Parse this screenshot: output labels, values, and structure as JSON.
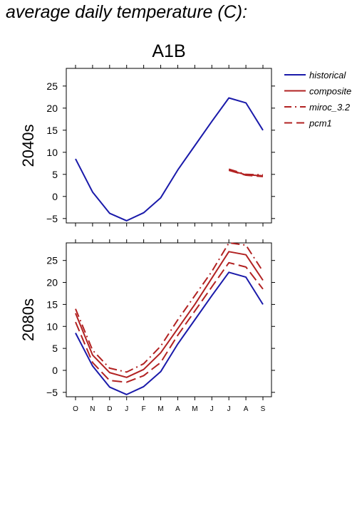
{
  "page_title": "average daily temperature (C):",
  "chart_data": {
    "type": "line",
    "title": "A1B",
    "legend": {
      "placement": "right",
      "entries": [
        {
          "label": "historical",
          "color": "#1a1aaa",
          "style": "solid"
        },
        {
          "label": "composite",
          "color": "#b22222",
          "style": "solid"
        },
        {
          "label": "miroc_3.2",
          "color": "#b22222",
          "style": "dashdot"
        },
        {
          "label": "pcm1",
          "color": "#b22222",
          "style": "dashed"
        }
      ]
    },
    "categories": [
      "O",
      "N",
      "D",
      "J",
      "F",
      "M",
      "A",
      "M",
      "J",
      "J",
      "A",
      "S"
    ],
    "yticks": [
      -5,
      0,
      5,
      10,
      15,
      20,
      25
    ],
    "ylim": [
      -6,
      29
    ],
    "panels": [
      {
        "ylabel": "2040s",
        "series": [
          {
            "name": "historical",
            "values": [
              8.5,
              1.0,
              -3.8,
              -5.5,
              -3.7,
              -0.3,
              6.0,
              11.5,
              17.0,
              22.3,
              21.2,
              15.0
            ]
          },
          {
            "name": "composite",
            "values": [
              null,
              null,
              null,
              null,
              null,
              null,
              null,
              null,
              null,
              6.0,
              4.9,
              4.7
            ]
          },
          {
            "name": "miroc_3.2",
            "values": [
              null,
              null,
              null,
              null,
              null,
              null,
              null,
              null,
              null,
              6.2,
              5.0,
              4.9
            ]
          },
          {
            "name": "pcm1",
            "values": [
              null,
              null,
              null,
              null,
              null,
              null,
              null,
              null,
              null,
              5.9,
              4.8,
              4.5
            ]
          }
        ]
      },
      {
        "ylabel": "2080s",
        "series": [
          {
            "name": "historical",
            "values": [
              8.5,
              1.0,
              -3.8,
              -5.5,
              -3.7,
              -0.3,
              6.0,
              11.5,
              17.0,
              22.3,
              21.2,
              15.0
            ]
          },
          {
            "name": "composite",
            "values": [
              13.0,
              3.5,
              -0.5,
              -1.6,
              0.2,
              4.0,
              9.5,
              15.0,
              21.0,
              27.0,
              26.3,
              20.5
            ]
          },
          {
            "name": "miroc_3.2",
            "values": [
              14.0,
              4.6,
              0.5,
              -0.4,
              1.5,
              5.5,
              11.5,
              17.0,
              22.5,
              29.0,
              28.5,
              22.5
            ]
          },
          {
            "name": "pcm1",
            "values": [
              11.0,
              1.8,
              -2.3,
              -2.7,
              -1.2,
              1.8,
              8.0,
              13.5,
              19.0,
              24.5,
              23.5,
              18.5
            ]
          }
        ]
      }
    ]
  }
}
